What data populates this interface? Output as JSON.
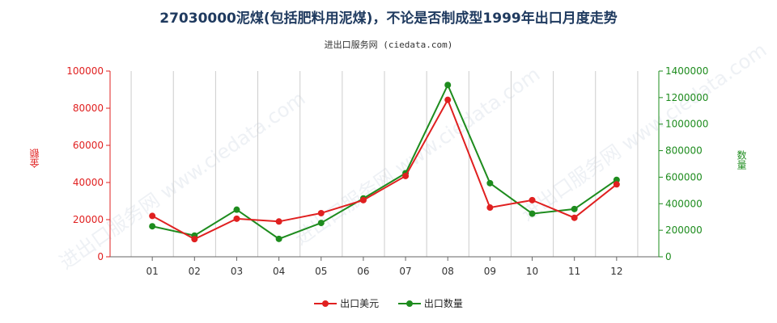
{
  "title": "27030000泥煤(包括肥料用泥煤)，不论是否制成型1999年出口月度走势",
  "subtitle": "进出口服务网 (ciedata.com)",
  "watermark": "进出口服务网 www.ciedata.com",
  "colors": {
    "usd": "#e02020",
    "qty": "#1e8c1e",
    "grid": "#cccccc",
    "axis": "#666666"
  },
  "chart_data": {
    "type": "line",
    "categories": [
      "01",
      "02",
      "03",
      "04",
      "05",
      "06",
      "07",
      "08",
      "09",
      "10",
      "11",
      "12"
    ],
    "ylabel_left": "金额",
    "ylabel_right": "数量",
    "ylim_left": [
      0,
      100000
    ],
    "ylim_right": [
      0,
      1400000
    ],
    "yticks_left": [
      "0",
      "20000",
      "40000",
      "60000",
      "80000",
      "100000"
    ],
    "yticks_right": [
      "0",
      "200000",
      "400000",
      "600000",
      "800000",
      "1000000",
      "1200000",
      "1400000"
    ],
    "grid": "vertical",
    "legend_position": "bottom",
    "series": [
      {
        "name": "出口美元",
        "axis": "left",
        "values": [
          22000,
          9500,
          20500,
          19000,
          23500,
          30500,
          43500,
          84500,
          26500,
          30500,
          21000,
          39000
        ]
      },
      {
        "name": "出口数量",
        "axis": "right",
        "values": [
          230000,
          160000,
          355000,
          135000,
          255000,
          440000,
          630000,
          1295000,
          555000,
          325000,
          360000,
          580000
        ]
      }
    ]
  }
}
